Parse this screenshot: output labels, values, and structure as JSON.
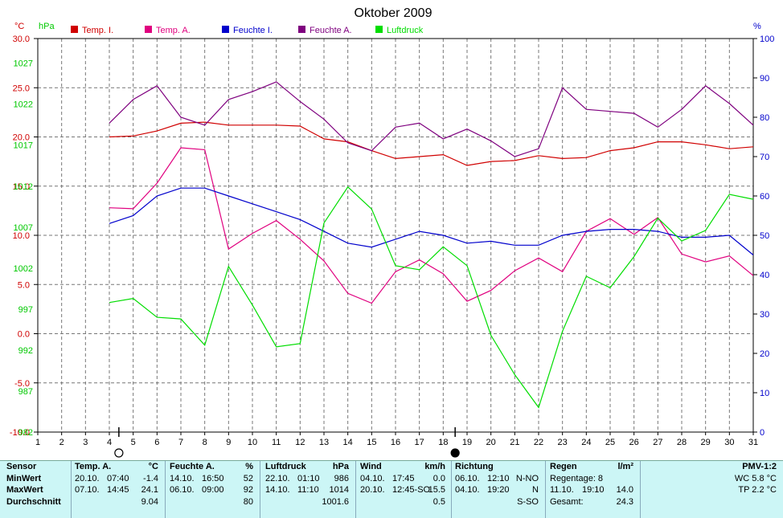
{
  "chart_data": {
    "type": "line",
    "title": "Oktober 2009",
    "x": [
      4,
      5,
      6,
      7,
      8,
      9,
      10,
      11,
      12,
      13,
      14,
      15,
      16,
      17,
      18,
      19,
      20,
      21,
      22,
      23,
      24,
      25,
      26,
      27,
      28,
      29,
      30,
      31
    ],
    "xlim": [
      1,
      31
    ],
    "xticks": [
      "1",
      "2",
      "3",
      "4",
      "5",
      "6",
      "7",
      "8",
      "9",
      "10",
      "11",
      "12",
      "13",
      "14",
      "15",
      "16",
      "17",
      "18",
      "19",
      "20",
      "21",
      "22",
      "23",
      "24",
      "25",
      "26",
      "27",
      "28",
      "29",
      "30",
      "31"
    ],
    "axes": {
      "temp": {
        "unit_label": "°C",
        "range": [
          -10,
          30
        ],
        "ticks": [
          "30.0",
          "25.0",
          "20.0",
          "15.0",
          "10.0",
          "5.0",
          "0.0",
          "-5.0",
          "-10.0"
        ],
        "color": "#d00000"
      },
      "pressure": {
        "unit_label": "hPa",
        "range": [
          982,
          1030
        ],
        "ticks": [
          "1027",
          "1022",
          "1017",
          "1012",
          "1007",
          "1002",
          "997",
          "992",
          "987",
          "982"
        ],
        "color": "#00c800"
      },
      "humidity": {
        "unit_label": "%",
        "range": [
          0,
          100
        ],
        "ticks": [
          "100",
          "90",
          "80",
          "70",
          "60",
          "50",
          "40",
          "30",
          "20",
          "10",
          "0"
        ],
        "color": "#0000cc"
      }
    },
    "grid": true,
    "legend_position": "top",
    "series": [
      {
        "name": "Temp. I.",
        "axis": "temp",
        "color": "#d00000",
        "values": [
          20.0,
          20.1,
          20.6,
          21.4,
          21.5,
          21.2,
          21.2,
          21.2,
          21.1,
          19.8,
          19.5,
          18.6,
          17.8,
          18.0,
          18.2,
          17.1,
          17.5,
          17.6,
          18.1,
          17.8,
          17.9,
          18.6,
          18.9,
          19.5,
          19.5,
          19.2,
          18.8,
          19.0
        ]
      },
      {
        "name": "Temp. A.",
        "axis": "temp",
        "color": "#e0007f",
        "values": [
          12.8,
          12.7,
          15.3,
          18.9,
          18.7,
          8.6,
          10.2,
          11.5,
          9.6,
          7.4,
          4.1,
          3.1,
          6.3,
          7.5,
          6.1,
          3.3,
          4.4,
          6.4,
          7.7,
          6.3,
          10.4,
          11.7,
          10.1,
          11.8,
          8.1,
          7.3,
          7.9,
          5.9
        ]
      },
      {
        "name": "Feuchte I.",
        "axis": "humidity",
        "color": "#0000cc",
        "values": [
          53,
          55,
          60,
          62,
          62,
          60,
          58,
          56,
          54,
          51,
          48,
          47,
          49,
          51,
          50,
          48,
          48.5,
          47.5,
          47.5,
          50,
          51,
          51.5,
          51.5,
          51,
          49.5,
          49.5,
          50,
          45
        ]
      },
      {
        "name": "Feuchte A.",
        "axis": "humidity",
        "color": "#7f007f",
        "values": [
          78.5,
          84.5,
          88,
          80,
          78,
          84.5,
          86.5,
          89,
          84,
          79.5,
          73.5,
          71.5,
          77.5,
          78.5,
          74.5,
          77,
          74,
          70,
          72,
          87.5,
          82,
          81.5,
          81,
          77.5,
          82,
          88,
          83.5,
          78
        ]
      },
      {
        "name": "Luftdruck",
        "axis": "pressure",
        "color": "#00dd00",
        "values": [
          997.8,
          998.3,
          996.0,
          995.8,
          992.6,
          1002.2,
          997.5,
          992.4,
          992.8,
          1007.5,
          1011.9,
          1009.2,
          1002.3,
          1001.8,
          1004.6,
          1002.3,
          993.8,
          989.0,
          985.0,
          994.3,
          1001.0,
          999.6,
          1003.4,
          1008.1,
          1005.3,
          1006.6,
          1011.0,
          1010.4
        ]
      }
    ],
    "markers": [
      {
        "day": 4.4,
        "type": "full-moon",
        "label": "O"
      },
      {
        "day": 18.5,
        "type": "new-moon",
        "label": "●"
      }
    ]
  },
  "stats": {
    "sensor": {
      "title": "Sensor",
      "rows": [
        "MinWert",
        "MaxWert",
        "Durchschnitt"
      ]
    },
    "temp_a": {
      "title": "Temp. A.",
      "unit": "°C",
      "rows": [
        {
          "date": "20.10.",
          "time": "07:40",
          "value": "-1.4"
        },
        {
          "date": "07.10.",
          "time": "14:45",
          "value": "24.1"
        },
        {
          "date": "",
          "time": "",
          "value": "9.04"
        }
      ]
    },
    "feuchte_a": {
      "title": "Feuchte A.",
      "unit": "%",
      "rows": [
        {
          "date": "14.10.",
          "time": "16:50",
          "value": "52"
        },
        {
          "date": "06.10.",
          "time": "09:00",
          "value": "92"
        },
        {
          "date": "",
          "time": "",
          "value": "80"
        }
      ]
    },
    "luftdruck": {
      "title": "Luftdruck",
      "unit": "hPa",
      "rows": [
        {
          "date": "22.10.",
          "time": "01:10",
          "value": "986"
        },
        {
          "date": "14.10.",
          "time": "11:10",
          "value": "1014"
        },
        {
          "date": "",
          "time": "",
          "value": "1001.6"
        }
      ]
    },
    "wind": {
      "title": "Wind",
      "unit": "km/h",
      "rows": [
        {
          "date": "04.10.",
          "time": "17:45",
          "value": "0.0"
        },
        {
          "date": "20.10.",
          "time": "12:45-SO",
          "value": "15.5"
        },
        {
          "date": "",
          "time": "",
          "value": "0.5"
        }
      ]
    },
    "richtung": {
      "title": "Richtung",
      "rows": [
        {
          "date": "06.10.",
          "time": "12:10",
          "value": "N-NO"
        },
        {
          "date": "04.10.",
          "time": "19:20",
          "value": "N"
        },
        {
          "date": "",
          "time": "",
          "value": "S-SO"
        }
      ]
    },
    "regen": {
      "title": "Regen",
      "unit": "l/m²",
      "regentage": "Regentage: 8",
      "max": {
        "date": "11.10.",
        "time": "19:10",
        "value": "14.0"
      },
      "gesamt_label": "Gesamt:",
      "gesamt": "24.3"
    },
    "pmv": {
      "title": "PMV-1:2",
      "wc": "WC 5.8 °C",
      "tp": "TP 2.2 °C"
    }
  }
}
